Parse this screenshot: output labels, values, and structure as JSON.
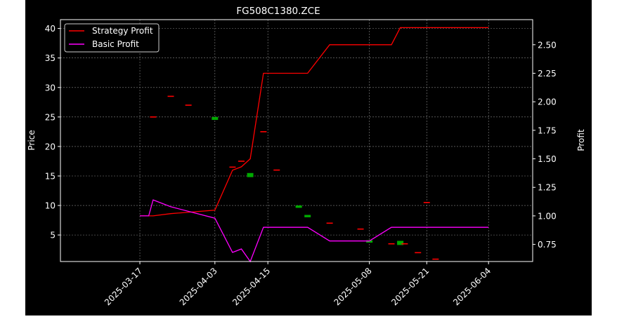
{
  "chart_data": {
    "type": "line",
    "title": "FG508C1380.ZCE",
    "ylabel": "Price",
    "y2label": "Profit",
    "grid": true,
    "legend_position": "top-left",
    "x_ticks": [
      "2025-03-17",
      "2025-04-03",
      "2025-04-15",
      "2025-05-08",
      "2025-05-21",
      "2025-06-04"
    ],
    "y_ticks": [
      "5",
      "10",
      "15",
      "20",
      "25",
      "30",
      "35",
      "40"
    ],
    "y2_ticks": [
      "0.75",
      "1.00",
      "1.25",
      "1.50",
      "1.75",
      "2.00",
      "2.25",
      "2.50"
    ],
    "ylim": [
      0.5,
      41.5
    ],
    "y2lim": [
      0.6,
      2.72
    ],
    "dates": [
      "2025-03-17",
      "2025-03-19",
      "2025-03-20",
      "2025-03-24",
      "2025-04-03",
      "2025-04-07",
      "2025-04-09",
      "2025-04-11",
      "2025-04-14",
      "2025-04-15",
      "2025-04-22",
      "2025-04-24",
      "2025-04-29",
      "2025-05-06",
      "2025-05-08",
      "2025-05-13",
      "2025-05-15",
      "2025-05-16",
      "2025-05-21",
      "2025-06-04"
    ],
    "series": [
      {
        "name": "Strategy Profit",
        "color": "#ff0000",
        "axis": "right",
        "values": [
          1.0,
          1.0,
          1.0,
          1.02,
          1.05,
          1.4,
          1.43,
          1.5,
          2.25,
          2.25,
          2.25,
          2.25,
          2.5,
          2.5,
          2.5,
          2.5,
          2.65,
          2.65,
          2.65,
          2.65
        ]
      },
      {
        "name": "Basic Profit",
        "color": "#ff00ff",
        "axis": "right",
        "values": [
          1.0,
          1.0,
          1.14,
          1.08,
          0.98,
          0.68,
          0.71,
          0.6,
          0.9,
          0.9,
          0.9,
          0.9,
          0.78,
          0.78,
          0.78,
          0.9,
          0.9,
          0.9,
          0.9,
          0.9
        ]
      }
    ],
    "candles": [
      {
        "date": "2025-03-20",
        "open": 25.0,
        "close": 25.0,
        "color": "#ff0000"
      },
      {
        "date": "2025-03-24",
        "open": 28.5,
        "close": 28.5,
        "color": "#ff0000"
      },
      {
        "date": "2025-03-28",
        "open": 27.0,
        "close": 27.0,
        "color": "#ff0000"
      },
      {
        "date": "2025-04-03",
        "open": 24.5,
        "close": 25.0,
        "color": "#00aa00"
      },
      {
        "date": "2025-04-07",
        "open": 16.5,
        "close": 16.5,
        "color": "#ff0000"
      },
      {
        "date": "2025-04-09",
        "open": 17.5,
        "close": 17.5,
        "color": "#ff0000"
      },
      {
        "date": "2025-04-11",
        "open": 14.8,
        "close": 15.5,
        "color": "#00aa00"
      },
      {
        "date": "2025-04-14",
        "open": 22.5,
        "close": 22.5,
        "color": "#ff0000"
      },
      {
        "date": "2025-04-17",
        "open": 16.0,
        "close": 16.0,
        "color": "#ff0000"
      },
      {
        "date": "2025-04-22",
        "open": 9.6,
        "close": 10.0,
        "color": "#00aa00"
      },
      {
        "date": "2025-04-24",
        "open": 8.0,
        "close": 8.4,
        "color": "#00aa00"
      },
      {
        "date": "2025-04-29",
        "open": 7.0,
        "close": 7.0,
        "color": "#ff0000"
      },
      {
        "date": "2025-05-06",
        "open": 6.0,
        "close": 6.0,
        "color": "#ff0000"
      },
      {
        "date": "2025-05-08",
        "open": 3.7,
        "close": 4.1,
        "color": "#00aa00"
      },
      {
        "date": "2025-05-13",
        "open": 3.5,
        "close": 3.5,
        "color": "#ff0000"
      },
      {
        "date": "2025-05-15",
        "open": 3.3,
        "close": 4.0,
        "color": "#00aa00"
      },
      {
        "date": "2025-05-16",
        "open": 3.5,
        "close": 3.5,
        "color": "#ff0000"
      },
      {
        "date": "2025-05-19",
        "open": 2.0,
        "close": 2.0,
        "color": "#ff0000"
      },
      {
        "date": "2025-05-21",
        "open": 10.5,
        "close": 10.5,
        "color": "#ff0000"
      },
      {
        "date": "2025-05-23",
        "open": 0.9,
        "close": 0.9,
        "color": "#ff0000"
      }
    ]
  }
}
